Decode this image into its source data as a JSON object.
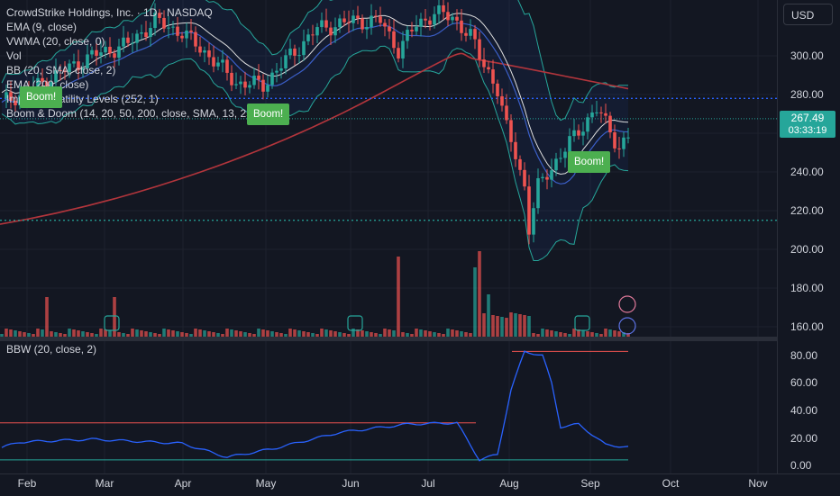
{
  "chart_header": {
    "title": "CrowdStrike Holdings, Inc. · 1D · NASDAQ",
    "indicators": [
      "EMA (9, close)",
      "VWMA (20, close, 0)",
      "Vol",
      "BB (20, SMA, close, 2)",
      "EMA (200, close)",
      "Implied Volatility Levels (252, 1)",
      "Boom & Doom (14, 20, 50, 200, close, SMA, 13, 252)"
    ]
  },
  "currency_button": "USD",
  "price_axis": {
    "ticks": [
      "300.00",
      "280.00",
      "260.00",
      "240.00",
      "220.00",
      "200.00",
      "180.00",
      "160.00"
    ],
    "last_price": "267.49",
    "countdown": "03:33:19"
  },
  "boom_labels": [
    "Boom!",
    "Boom!",
    "Boom!"
  ],
  "bbw_pane": {
    "legend": "BBW (20, close, 2)",
    "ticks": [
      "80.00",
      "60.00",
      "40.00",
      "20.00",
      "0.00"
    ]
  },
  "time_axis": [
    "Feb",
    "Mar",
    "Apr",
    "May",
    "Jun",
    "Jul",
    "Aug",
    "Sep",
    "Oct",
    "Nov"
  ],
  "colors": {
    "background": "#131722",
    "up": "#26a69a",
    "down": "#ef5350",
    "ema200": "#b2353c",
    "vwma": "#3b5fc8",
    "bb": "#26a69a",
    "bbw": "#2962ff",
    "iv_level_blue": "#2962ff",
    "iv_level_green": "#26a69a",
    "boom": "#4caf50"
  },
  "chart_data": [
    {
      "type": "candlestick",
      "title": "CrowdStrike Holdings, Inc. · 1D · NASDAQ",
      "x": [
        "2024-08-05",
        "2024-08-15",
        "2024-08-30",
        "2024-09-13"
      ],
      "close": [
        200,
        242,
        258,
        267.49
      ],
      "ylim": [
        155,
        320
      ],
      "levels": [
        278,
        215
      ],
      "last_price": 267.49
    },
    {
      "type": "line",
      "title": "BBW (20, close, 2)",
      "x": [
        "Feb",
        "Mar",
        "Apr",
        "May",
        "Jun",
        "Jul",
        "Aug",
        "Sep"
      ],
      "values": [
        17,
        19,
        6,
        12,
        24,
        31,
        83,
        30
      ],
      "ylim": [
        0,
        88
      ],
      "threshold_high": 83,
      "threshold_low": 4
    }
  ]
}
